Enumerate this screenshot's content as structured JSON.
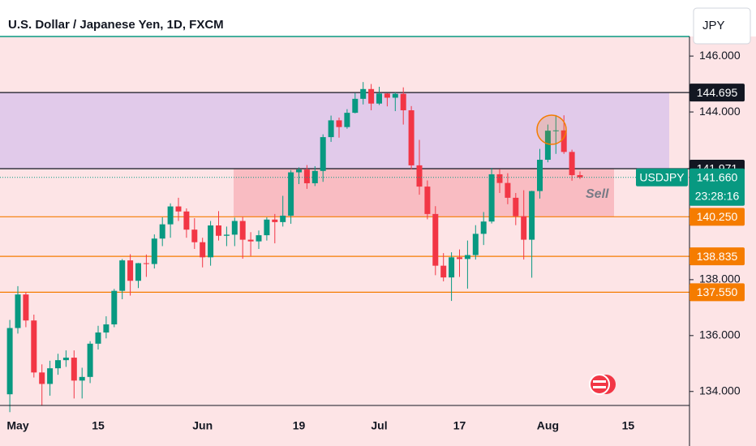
{
  "chart_data": {
    "type": "candlestick",
    "title": "U.S. Dollar / Japanese Yen, 1D, FXCM",
    "currency": "JPY",
    "categories": [
      null,
      "May",
      null,
      null,
      null,
      null,
      null,
      null,
      null,
      null,
      null,
      "15",
      null,
      null,
      null,
      null,
      null,
      null,
      null,
      null,
      null,
      null,
      null,
      null,
      "Jun",
      null,
      null,
      null,
      null,
      null,
      null,
      null,
      null,
      null,
      null,
      null,
      "19",
      null,
      null,
      null,
      null,
      null,
      null,
      null,
      null,
      null,
      "Jul",
      null,
      null,
      null,
      null,
      null,
      null,
      null,
      null,
      null,
      "17",
      null,
      null,
      null,
      null,
      null,
      null,
      null,
      null,
      null,
      null,
      "Aug",
      null,
      null,
      null,
      null,
      null,
      null,
      null,
      null,
      null,
      "15",
      null,
      null,
      null,
      null,
      null,
      null,
      null
    ],
    "open": [
      133.9,
      136.27,
      137.47,
      136.54,
      134.68,
      134.27,
      134.83,
      135.12,
      135.21,
      134.39,
      134.52,
      135.71,
      136.11,
      136.4,
      137.6,
      138.69,
      137.96,
      138.59,
      138.56,
      139.47,
      139.98,
      140.62,
      140.44,
      139.79,
      139.34,
      138.8,
      139.94,
      139.57,
      139.61,
      140.1,
      139.43,
      139.37,
      139.59,
      140.15,
      140.06,
      140.29,
      141.84,
      141.94,
      141.45,
      141.89,
      143.1,
      143.7,
      143.46,
      143.97,
      144.47,
      144.82,
      144.3,
      144.66,
      144.51,
      144.65,
      144.06,
      142.09,
      141.33,
      140.35,
      138.5,
      138.08,
      138.8,
      138.74,
      138.88,
      139.64,
      140.08,
      141.77,
      141.46,
      140.93,
      140.27,
      139.43,
      141.17,
      142.29,
      143.33,
      143.34,
      142.57,
      141.74,
      null,
      null,
      null,
      null,
      null,
      null,
      null,
      null,
      null,
      null,
      null,
      null,
      null
    ],
    "high": [
      136.56,
      137.77,
      137.56,
      136.75,
      134.97,
      135.1,
      135.35,
      135.47,
      135.47,
      134.85,
      135.8,
      136.35,
      136.69,
      137.67,
      138.74,
      138.91,
      138.6,
      138.9,
      139.62,
      140.23,
      140.73,
      140.93,
      140.55,
      140.2,
      139.5,
      140.1,
      140.45,
      139.9,
      140.22,
      140.25,
      139.7,
      139.76,
      140.23,
      140.35,
      141.0,
      141.92,
      142.02,
      142.1,
      142.06,
      143.2,
      143.87,
      143.8,
      144.1,
      144.67,
      145.07,
      145.0,
      144.9,
      144.67,
      144.7,
      144.88,
      144.21,
      143.0,
      141.55,
      140.63,
      138.95,
      138.98,
      139.08,
      139.4,
      139.95,
      140.42,
      142.0,
      141.95,
      141.81,
      141.1,
      141.2,
      141.18,
      142.68,
      143.55,
      143.89,
      143.88,
      142.65,
      141.87,
      null,
      null,
      null,
      null,
      null,
      null,
      null,
      null,
      null,
      null,
      null,
      null,
      null
    ],
    "low": [
      133.26,
      136.07,
      136.3,
      134.5,
      133.5,
      133.85,
      134.6,
      134.88,
      133.75,
      133.75,
      134.3,
      135.5,
      135.9,
      136.3,
      137.3,
      137.43,
      137.7,
      138.1,
      138.4,
      139.2,
      139.5,
      140.1,
      139.5,
      139.1,
      138.44,
      138.5,
      139.4,
      139.2,
      139.2,
      138.75,
      138.85,
      139.1,
      139.4,
      139.3,
      139.9,
      140.0,
      141.42,
      141.25,
      141.35,
      141.5,
      142.93,
      143.08,
      143.4,
      143.95,
      144.27,
      144.06,
      144.25,
      144.2,
      144.03,
      143.55,
      141.95,
      141.04,
      140.16,
      138.16,
      137.94,
      137.24,
      138.1,
      137.68,
      138.72,
      139.24,
      140.01,
      141.1,
      140.7,
      139.95,
      138.72,
      138.07,
      140.9,
      142.2,
      142.5,
      142.5,
      141.54,
      141.6,
      null,
      null,
      null,
      null,
      null,
      null,
      null,
      null,
      null,
      null,
      null,
      null,
      null
    ],
    "close": [
      136.27,
      137.47,
      136.54,
      134.68,
      134.27,
      134.83,
      135.12,
      135.21,
      134.39,
      134.52,
      135.71,
      136.11,
      136.4,
      137.6,
      138.69,
      137.96,
      138.59,
      138.56,
      139.47,
      139.98,
      140.62,
      140.44,
      139.79,
      139.34,
      138.8,
      139.94,
      139.57,
      139.61,
      140.1,
      139.43,
      139.37,
      139.59,
      140.15,
      140.06,
      140.29,
      141.84,
      141.94,
      141.45,
      141.89,
      143.1,
      143.7,
      143.46,
      143.97,
      144.47,
      144.82,
      144.3,
      144.66,
      144.51,
      144.65,
      144.06,
      142.09,
      141.33,
      140.35,
      138.5,
      138.08,
      138.8,
      138.74,
      138.88,
      139.64,
      140.08,
      141.77,
      141.46,
      140.93,
      140.27,
      139.43,
      141.17,
      142.29,
      143.33,
      143.34,
      142.57,
      141.74,
      141.66,
      null,
      null,
      null,
      null,
      null,
      null,
      null,
      null,
      null,
      null,
      null,
      null,
      null
    ],
    "up_color": "#089981",
    "down_color": "#f23645",
    "ylim": [
      133.5,
      146.7
    ],
    "yticks": [
      {
        "value": 134,
        "label": "134.000"
      },
      {
        "value": 136,
        "label": "136.000"
      },
      {
        "value": 138,
        "label": "138.000"
      },
      {
        "value": 144,
        "label": "144.000"
      },
      {
        "value": 146,
        "label": "146.000"
      }
    ],
    "levels": [
      {
        "value": 144.695,
        "label": "144.695",
        "color": "#131722"
      },
      {
        "value": 141.971,
        "label": "141.971",
        "color": "#131722"
      },
      {
        "value": 140.25,
        "label": "140.250",
        "color": "#f57c00"
      },
      {
        "value": 138.835,
        "label": "138.835",
        "color": "#f57c00"
      },
      {
        "value": 137.55,
        "label": "137.550",
        "color": "#f57c00"
      }
    ],
    "current": {
      "symbol": "USDJPY",
      "value": 141.66,
      "label": "141.660",
      "countdown": "23:28:16",
      "color": "#089981"
    },
    "annotation": "Sell"
  }
}
